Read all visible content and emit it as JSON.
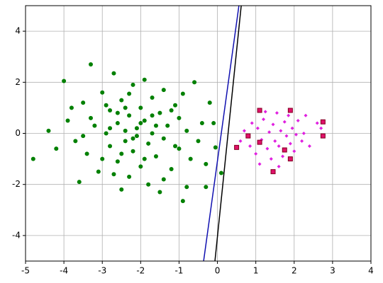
{
  "chart_data": {
    "type": "scatter",
    "grid": true,
    "xlim": [
      -5,
      4
    ],
    "ylim": [
      -5,
      5
    ],
    "xticks": [
      -5,
      -4,
      -3,
      -2,
      -1,
      0,
      1,
      2,
      3,
      4
    ],
    "yticks": [
      -4,
      -2,
      0,
      2,
      4
    ],
    "series": [
      {
        "kind": "scatter",
        "marker": "circle",
        "color": "#008000",
        "x": [
          -4.8,
          -4.4,
          -4.0,
          -3.3,
          -3.9,
          -3.7,
          -3.5,
          -3.4,
          -3.2,
          -3.1,
          -3.0,
          -2.9,
          -2.8,
          -2.8,
          -2.7,
          -2.6,
          -2.6,
          -2.5,
          -2.5,
          -2.4,
          -2.4,
          -2.3,
          -2.3,
          -2.2,
          -2.2,
          -2.1,
          -2.1,
          -2.0,
          -2.0,
          -1.9,
          -1.9,
          -1.8,
          -1.8,
          -1.7,
          -1.7,
          -1.6,
          -1.5,
          -1.5,
          -1.4,
          -1.4,
          -1.3,
          -1.2,
          -1.1,
          -1.0,
          -1.0,
          -0.9,
          -0.9,
          -0.8,
          -0.8,
          -0.7,
          -0.6,
          -0.5,
          -0.4,
          -0.3,
          -0.2,
          -0.1,
          -0.05,
          0.1,
          -0.3,
          -3.6,
          -3.8,
          -4.2,
          -3.0,
          -2.9,
          -2.7,
          -2.3,
          -2.0,
          -1.6,
          -1.2,
          -1.1,
          -2.5,
          -2.6,
          -3.3,
          -3.5,
          -1.9,
          -1.4,
          -2.8,
          -2.2,
          -1.7,
          -2.4
        ],
        "y": [
          -1.0,
          0.1,
          2.05,
          2.7,
          0.5,
          -0.3,
          1.2,
          -0.8,
          0.3,
          -1.5,
          1.6,
          0.0,
          -0.5,
          0.9,
          2.35,
          -1.1,
          0.4,
          -2.2,
          1.3,
          0.1,
          -0.3,
          0.7,
          -1.7,
          1.9,
          -0.7,
          0.2,
          -0.1,
          1.0,
          -1.3,
          2.1,
          0.5,
          -0.4,
          -2.0,
          1.4,
          0.0,
          -0.9,
          0.8,
          -2.3,
          1.7,
          -0.2,
          0.3,
          -1.4,
          1.1,
          -0.6,
          0.6,
          -2.65,
          1.55,
          -2.1,
          0.1,
          -1.0,
          2.0,
          -0.3,
          0.4,
          -1.2,
          1.2,
          0.4,
          -0.55,
          -1.55,
          -2.1,
          -1.9,
          1.0,
          -0.6,
          -1.0,
          1.1,
          -1.6,
          1.55,
          0.4,
          0.3,
          0.9,
          -0.5,
          -0.8,
          0.8,
          0.6,
          -0.1,
          -1.0,
          -1.8,
          0.2,
          -0.2,
          0.7,
          1.0
        ]
      },
      {
        "kind": "scatter",
        "marker": "diamond",
        "color": "#e020e0",
        "x": [
          0.6,
          0.7,
          0.85,
          0.9,
          1.0,
          1.05,
          1.15,
          1.2,
          1.3,
          1.35,
          1.4,
          1.45,
          1.5,
          1.55,
          1.6,
          1.65,
          1.7,
          1.75,
          1.8,
          1.85,
          1.9,
          1.95,
          2.0,
          2.05,
          2.1,
          2.2,
          2.25,
          2.3,
          2.4,
          2.6,
          2.7,
          1.1,
          1.6,
          1.25
        ],
        "y": [
          -0.3,
          0.1,
          -0.5,
          0.4,
          -0.8,
          0.2,
          -0.25,
          0.55,
          -0.6,
          0.05,
          -1.0,
          0.35,
          -0.3,
          0.8,
          -0.5,
          0.1,
          -0.9,
          0.45,
          -0.1,
          0.7,
          -0.4,
          0.2,
          -0.7,
          -0.05,
          0.5,
          -0.3,
          0.0,
          0.7,
          -0.5,
          0.4,
          0.2,
          -1.2,
          -1.3,
          0.85
        ]
      },
      {
        "kind": "scatter",
        "marker": "square",
        "color": "#e0106a",
        "x": [
          1.1,
          1.9,
          2.75,
          2.75,
          0.5,
          0.8,
          1.1,
          1.75,
          1.9,
          1.45
        ],
        "y": [
          0.9,
          0.9,
          0.45,
          -0.1,
          -0.55,
          -0.1,
          -0.35,
          -0.65,
          -1.0,
          -1.5
        ]
      },
      {
        "kind": "line",
        "color": "#1010b0",
        "x": [
          -0.36,
          0.56
        ],
        "y": [
          -5,
          5
        ]
      },
      {
        "kind": "line",
        "color": "#000000",
        "x": [
          -0.065,
          0.62
        ],
        "y": [
          -5,
          5
        ]
      }
    ]
  }
}
